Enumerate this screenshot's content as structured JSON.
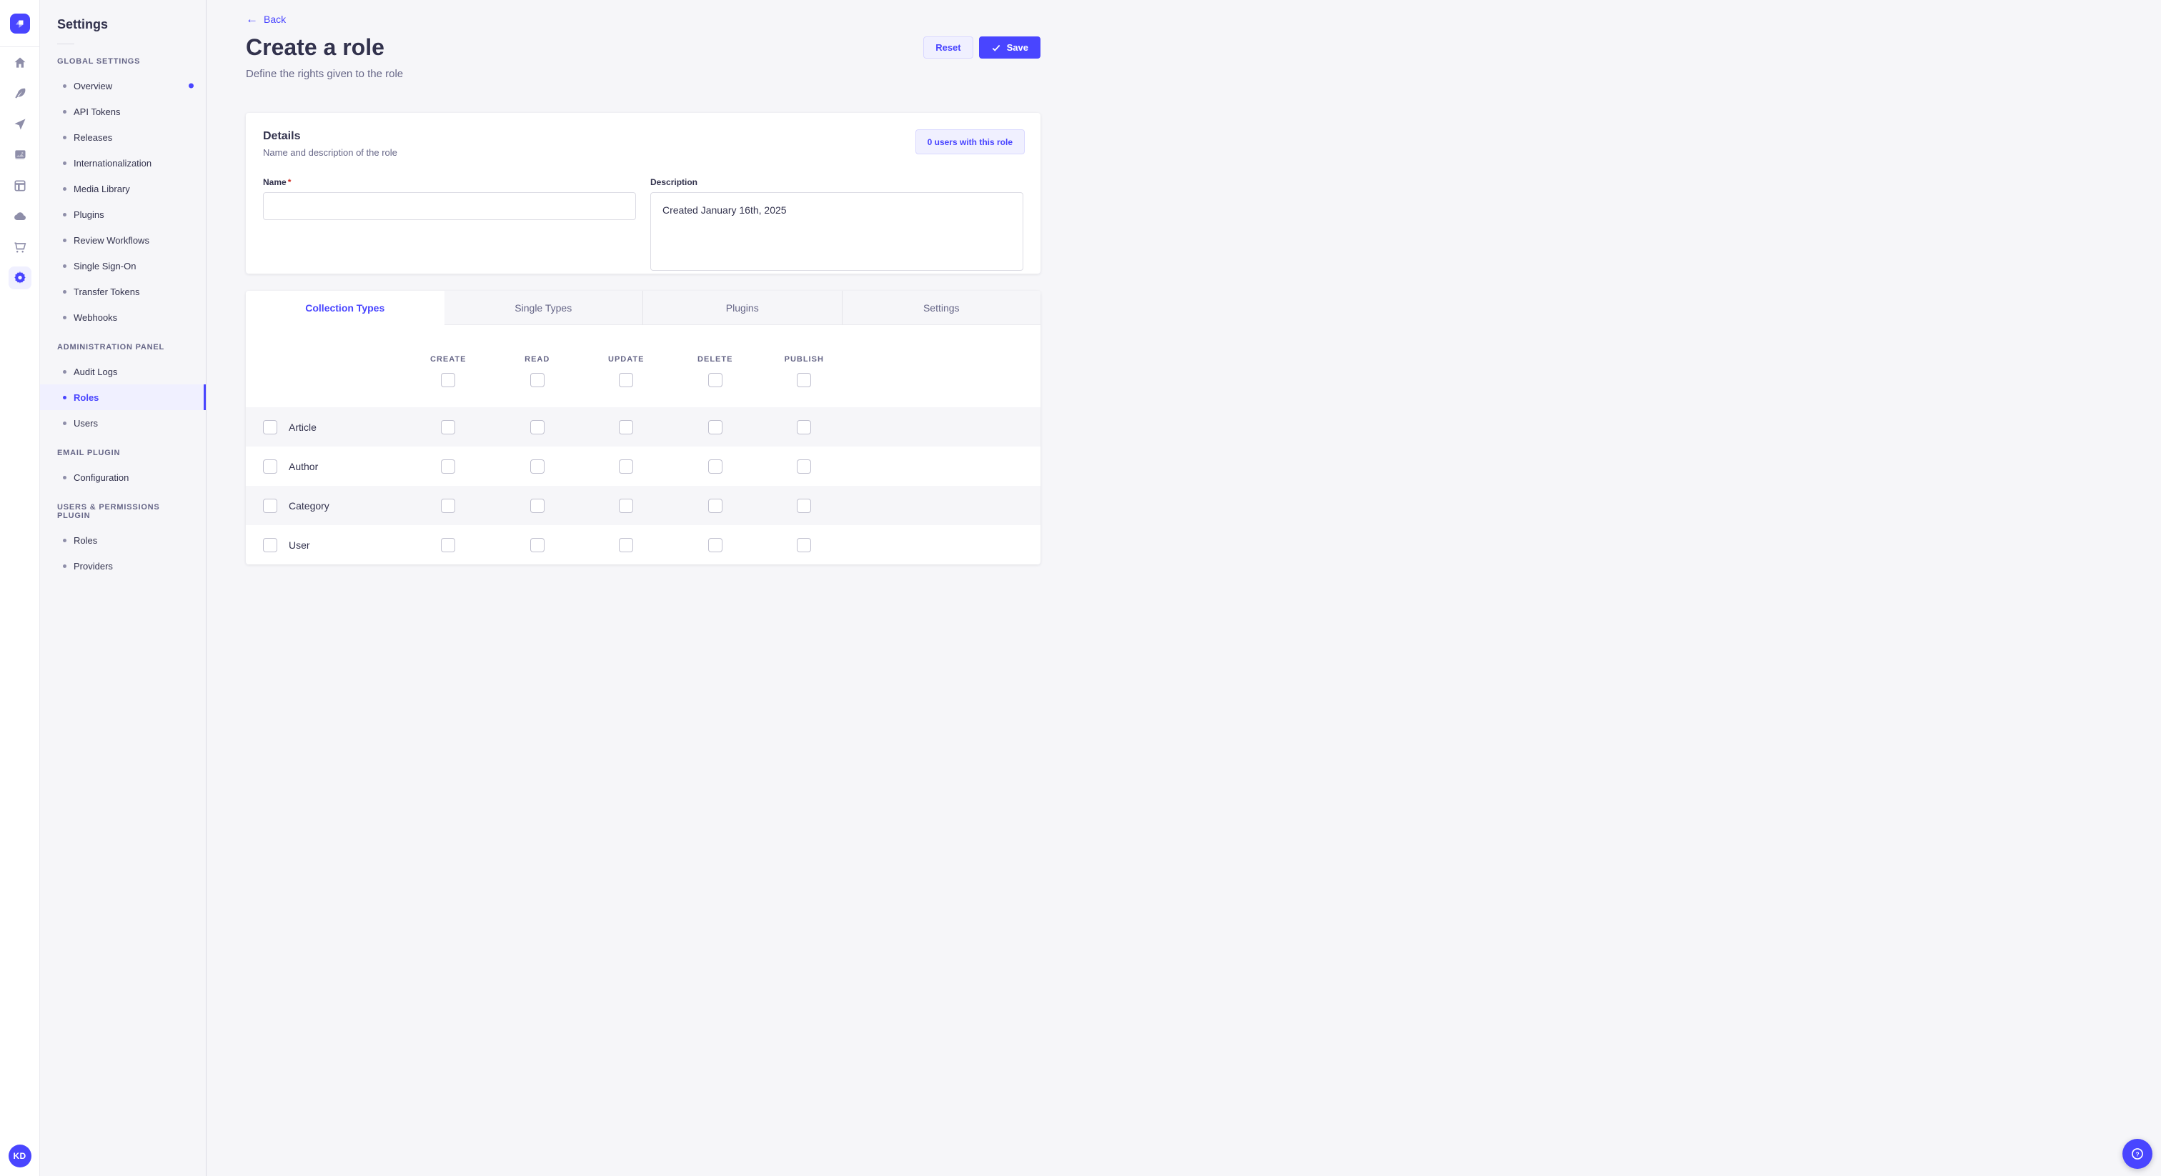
{
  "theme": {
    "primary": "#4945ff",
    "primary_light_bg": "#f0f0ff",
    "primary_border_light": "#d9d8ff",
    "page_bg": "#f6f6f9",
    "text_dark": "#32324d",
    "text_muted": "#666687",
    "required_asterisk": "#d02b20"
  },
  "rail": {
    "logo_icon": "strapi-logo",
    "icons": [
      "home-icon",
      "feather-icon",
      "send-icon",
      "media-images-icon",
      "layout-icon",
      "cloud-icon",
      "cart-icon",
      "gear-icon"
    ],
    "active_icon": "gear-icon",
    "avatar_initials": "KD"
  },
  "sidebar": {
    "title": "Settings",
    "sections": [
      {
        "label": "GLOBAL SETTINGS",
        "items": [
          {
            "label": "Overview",
            "notification": true
          },
          {
            "label": "API Tokens"
          },
          {
            "label": "Releases"
          },
          {
            "label": "Internationalization"
          },
          {
            "label": "Media Library"
          },
          {
            "label": "Plugins"
          },
          {
            "label": "Review Workflows"
          },
          {
            "label": "Single Sign-On"
          },
          {
            "label": "Transfer Tokens"
          },
          {
            "label": "Webhooks"
          }
        ]
      },
      {
        "label": "ADMINISTRATION PANEL",
        "items": [
          {
            "label": "Audit Logs"
          },
          {
            "label": "Roles",
            "active": true
          },
          {
            "label": "Users"
          }
        ]
      },
      {
        "label": "EMAIL PLUGIN",
        "items": [
          {
            "label": "Configuration"
          }
        ]
      },
      {
        "label": "USERS & PERMISSIONS PLUGIN",
        "items": [
          {
            "label": "Roles"
          },
          {
            "label": "Providers"
          }
        ]
      }
    ]
  },
  "header": {
    "back_label": "Back",
    "title": "Create a role",
    "subtitle": "Define the rights given to the role",
    "reset_label": "Reset",
    "save_label": "Save",
    "save_icon": "check-icon"
  },
  "details": {
    "title": "Details",
    "subtitle": "Name and description of the role",
    "users_chip_label": "0 users with this role",
    "name": {
      "label": "Name",
      "required": true,
      "value": "",
      "placeholder": ""
    },
    "description": {
      "label": "Description",
      "value": "Created January 16th, 2025"
    }
  },
  "permissions": {
    "tabs": [
      {
        "label": "Collection Types",
        "active": true
      },
      {
        "label": "Single Types",
        "active": false
      },
      {
        "label": "Plugins",
        "active": false
      },
      {
        "label": "Settings",
        "active": false
      }
    ],
    "columns": [
      "CREATE",
      "READ",
      "UPDATE",
      "DELETE",
      "PUBLISH"
    ],
    "header_checkboxes": [
      false,
      false,
      false,
      false,
      false
    ],
    "rows": [
      {
        "label": "Article",
        "checked": false,
        "permissions": [
          false,
          false,
          false,
          false,
          false
        ]
      },
      {
        "label": "Author",
        "checked": false,
        "permissions": [
          false,
          false,
          false,
          false,
          false
        ]
      },
      {
        "label": "Category",
        "checked": false,
        "permissions": [
          false,
          false,
          false,
          false,
          false
        ]
      },
      {
        "label": "User",
        "checked": false,
        "permissions": [
          false,
          false,
          false,
          false,
          false
        ]
      }
    ]
  },
  "fab": {
    "icon": "help-question-icon"
  }
}
